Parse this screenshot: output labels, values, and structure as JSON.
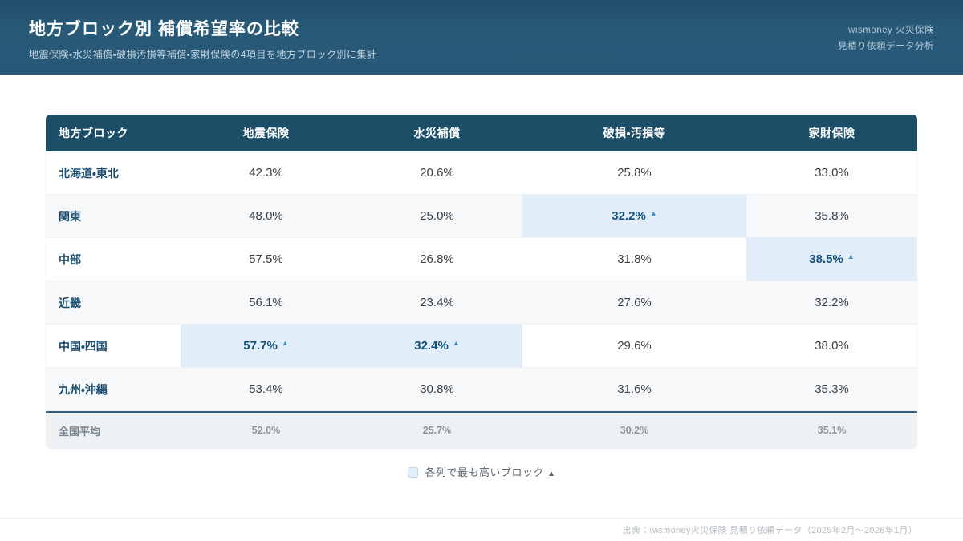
{
  "banner": {
    "title": "地方ブロック別 補償希望率の比較",
    "subtitle": "地震保険・水災補償・破損汚損等補償・家財保険の4項目を地方ブロック別に集計",
    "brand_line1": "wismoney 火災保険",
    "brand_line2": "見積り依頼データ分析"
  },
  "table": {
    "columns": [
      "地方ブロック",
      "地震保険",
      "水災補償",
      "破損・汚損等",
      "家財保険"
    ],
    "rows": [
      {
        "label": "北海道・東北",
        "values": [
          "42.3%",
          "20.6%",
          "25.8%",
          "33.0%"
        ],
        "highlight": [
          false,
          false,
          false,
          false
        ]
      },
      {
        "label": "関東",
        "values": [
          "48.0%",
          "25.0%",
          "32.2%",
          "35.8%"
        ],
        "highlight": [
          false,
          false,
          true,
          false
        ]
      },
      {
        "label": "中部",
        "values": [
          "57.5%",
          "26.8%",
          "31.8%",
          "38.5%"
        ],
        "highlight": [
          false,
          false,
          false,
          true
        ]
      },
      {
        "label": "近畿",
        "values": [
          "56.1%",
          "23.4%",
          "27.6%",
          "32.2%"
        ],
        "highlight": [
          false,
          false,
          false,
          false
        ]
      },
      {
        "label": "中国・四国",
        "values": [
          "57.7%",
          "32.4%",
          "29.6%",
          "38.0%"
        ],
        "highlight": [
          true,
          true,
          false,
          false
        ]
      },
      {
        "label": "九州・沖縄",
        "values": [
          "53.4%",
          "30.8%",
          "31.6%",
          "35.3%"
        ],
        "highlight": [
          false,
          false,
          false,
          false
        ]
      }
    ],
    "footer": {
      "label": "全国平均",
      "values": [
        "52.0%",
        "25.7%",
        "30.2%",
        "35.1%"
      ]
    },
    "highlight_marker": "▲"
  },
  "legend": {
    "label": "各列で最も高いブロック",
    "marker": "▲"
  },
  "footer": {
    "source": "出典：wismoney火災保険 見積り依頼データ（2025年2月〜2026年1月）"
  },
  "colors": {
    "banner_bg": "#275877",
    "table_header_bg": "#1d4e68",
    "highlight_bg": "#e1eef9",
    "highlight_text": "#14527c",
    "marker_blue": "#3f8fc9",
    "footer_row_bg": "#edf1f4",
    "footer_row_border": "#2b5e7d"
  },
  "chart_data": {
    "type": "table",
    "title": "地方ブロック別 補償希望率の比較",
    "subtitle": "地震保険・水災補償・破損汚損等補償・家財保険の4項目を地方ブロック別に集計",
    "unit": "%",
    "categories": [
      "北海道・東北",
      "関東",
      "中部",
      "近畿",
      "中国・四国",
      "九州・沖縄"
    ],
    "series": [
      {
        "name": "地震保険",
        "values": [
          42.3,
          48.0,
          57.5,
          56.1,
          57.7,
          53.4
        ],
        "national_average": 52.0,
        "top_block": "中国・四国"
      },
      {
        "name": "水災補償",
        "values": [
          20.6,
          25.0,
          26.8,
          23.4,
          32.4,
          30.8
        ],
        "national_average": 25.7,
        "top_block": "中国・四国"
      },
      {
        "name": "破損・汚損等",
        "values": [
          25.8,
          32.2,
          31.8,
          27.6,
          29.6,
          31.6
        ],
        "national_average": 30.2,
        "top_block": "関東"
      },
      {
        "name": "家財保険",
        "values": [
          33.0,
          35.8,
          38.5,
          32.2,
          38.0,
          35.3
        ],
        "national_average": 35.1,
        "top_block": "中部"
      }
    ],
    "legend_note": "各列で最も高いブロック ▲"
  }
}
